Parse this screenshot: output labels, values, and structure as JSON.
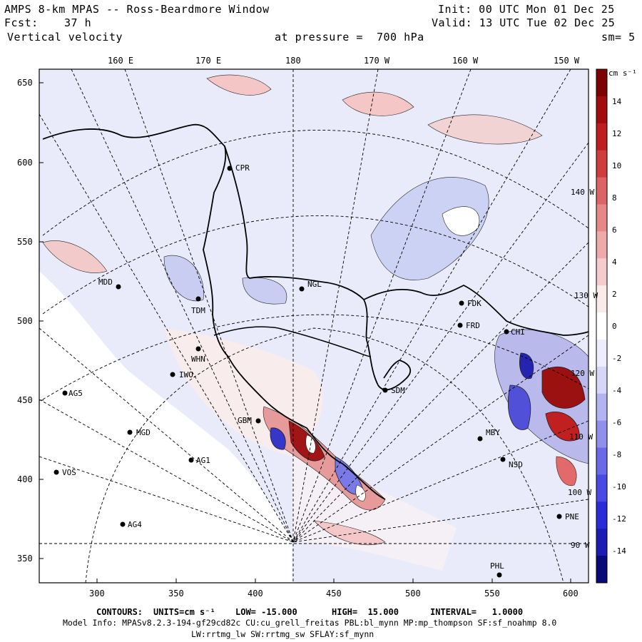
{
  "header": {
    "title": "AMPS 8-km MPAS -- Ross-Beardmore Window",
    "init": "Init: 00 UTC Mon 01 Dec 25",
    "fcst_label": "Fcst:",
    "fcst_value": "37 h",
    "valid": "Valid: 13 UTC Tue 02 Dec 25",
    "variable": "Vertical velocity",
    "pressure": "at pressure =  700 hPa",
    "smoothing": "sm= 5"
  },
  "top_axis": [
    "160 E",
    "170 E",
    "180",
    "170 W",
    "160 W",
    "150 W"
  ],
  "left_axis": [
    "650",
    "600",
    "550",
    "500",
    "450",
    "400",
    "350"
  ],
  "bottom_axis": [
    "300",
    "350",
    "400",
    "450",
    "500",
    "550",
    "600"
  ],
  "colorbar": {
    "units_label": "cm s⁻¹",
    "ticks": [
      "14",
      "12",
      "10",
      "8",
      "6",
      "4",
      "2",
      "0",
      "-2",
      "-4",
      "-6",
      "-8",
      "-10",
      "-12",
      "-14"
    ],
    "colors": [
      "#0a0a78",
      "#1c1cb4",
      "#2b2bd9",
      "#4949e6",
      "#6a6ae8",
      "#8f8fec",
      "#b3b3f2",
      "#d6d6f7",
      "#ededfb",
      "#ffffff",
      "#fbeaea",
      "#f5cccc",
      "#eeaaaa",
      "#e68888",
      "#dc6464",
      "#cf3d3d",
      "#c01e1e",
      "#a30c0c",
      "#7d0202"
    ]
  },
  "lon_labels_right": [
    "140 W",
    "130 W",
    "120 W",
    "110 W",
    "100 W",
    "90 W"
  ],
  "stations": [
    "CPR",
    "NGL",
    "TDM",
    "MDD",
    "FDK",
    "FRD",
    "WHN",
    "IWO",
    "AG5",
    "SDM",
    "GBM",
    "MGD",
    "MBY",
    "VOS",
    "AG1",
    "NSD",
    "AG4",
    "PNE",
    "PHL",
    "CHI"
  ],
  "footer": {
    "contours_label": "CONTOURS:",
    "units": "UNITS=cm s⁻¹",
    "low": "LOW= -15.000",
    "high": "HIGH=  15.000",
    "interval": "INTERVAL=   1.0000",
    "model_info": "Model Info: MPASv8.2.3-194-gf29cd82c CU:cu_grell_freitas PBL:bl_mynn MP:mp_thompson SF:sf_noahmp 8.0",
    "model_info2": "LW:rrtmg_lw SW:rrtmg_sw SFLAY:sf_mynn"
  }
}
